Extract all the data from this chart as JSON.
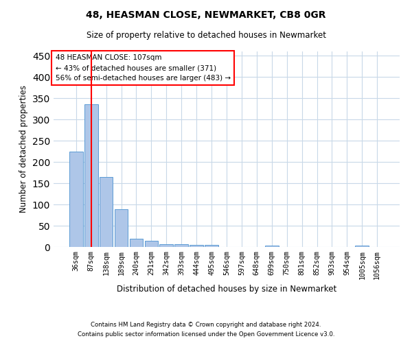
{
  "title1": "48, HEASMAN CLOSE, NEWMARKET, CB8 0GR",
  "title2": "Size of property relative to detached houses in Newmarket",
  "xlabel": "Distribution of detached houses by size in Newmarket",
  "ylabel": "Number of detached properties",
  "annotation_line1": "48 HEASMAN CLOSE: 107sqm",
  "annotation_line2": "← 43% of detached houses are smaller (371)",
  "annotation_line3": "56% of semi-detached houses are larger (483) →",
  "categories": [
    "36sqm",
    "87sqm",
    "138sqm",
    "189sqm",
    "240sqm",
    "291sqm",
    "342sqm",
    "393sqm",
    "444sqm",
    "495sqm",
    "546sqm",
    "597sqm",
    "648sqm",
    "699sqm",
    "750sqm",
    "801sqm",
    "852sqm",
    "903sqm",
    "954sqm",
    "1005sqm",
    "1056sqm"
  ],
  "values": [
    225,
    336,
    165,
    88,
    20,
    15,
    6,
    6,
    5,
    5,
    0,
    0,
    0,
    4,
    0,
    0,
    0,
    0,
    0,
    4,
    0
  ],
  "bar_color": "#aec6e8",
  "bar_edge_color": "#5b9bd5",
  "vline_x": 1.0,
  "vline_color": "red",
  "annotation_box_color": "red",
  "ylim": [
    0,
    460
  ],
  "yticks": [
    0,
    50,
    100,
    150,
    200,
    250,
    300,
    350,
    400,
    450
  ],
  "background_color": "#ffffff",
  "grid_color": "#c8d8e8",
  "footer1": "Contains HM Land Registry data © Crown copyright and database right 2024.",
  "footer2": "Contains public sector information licensed under the Open Government Licence v3.0."
}
